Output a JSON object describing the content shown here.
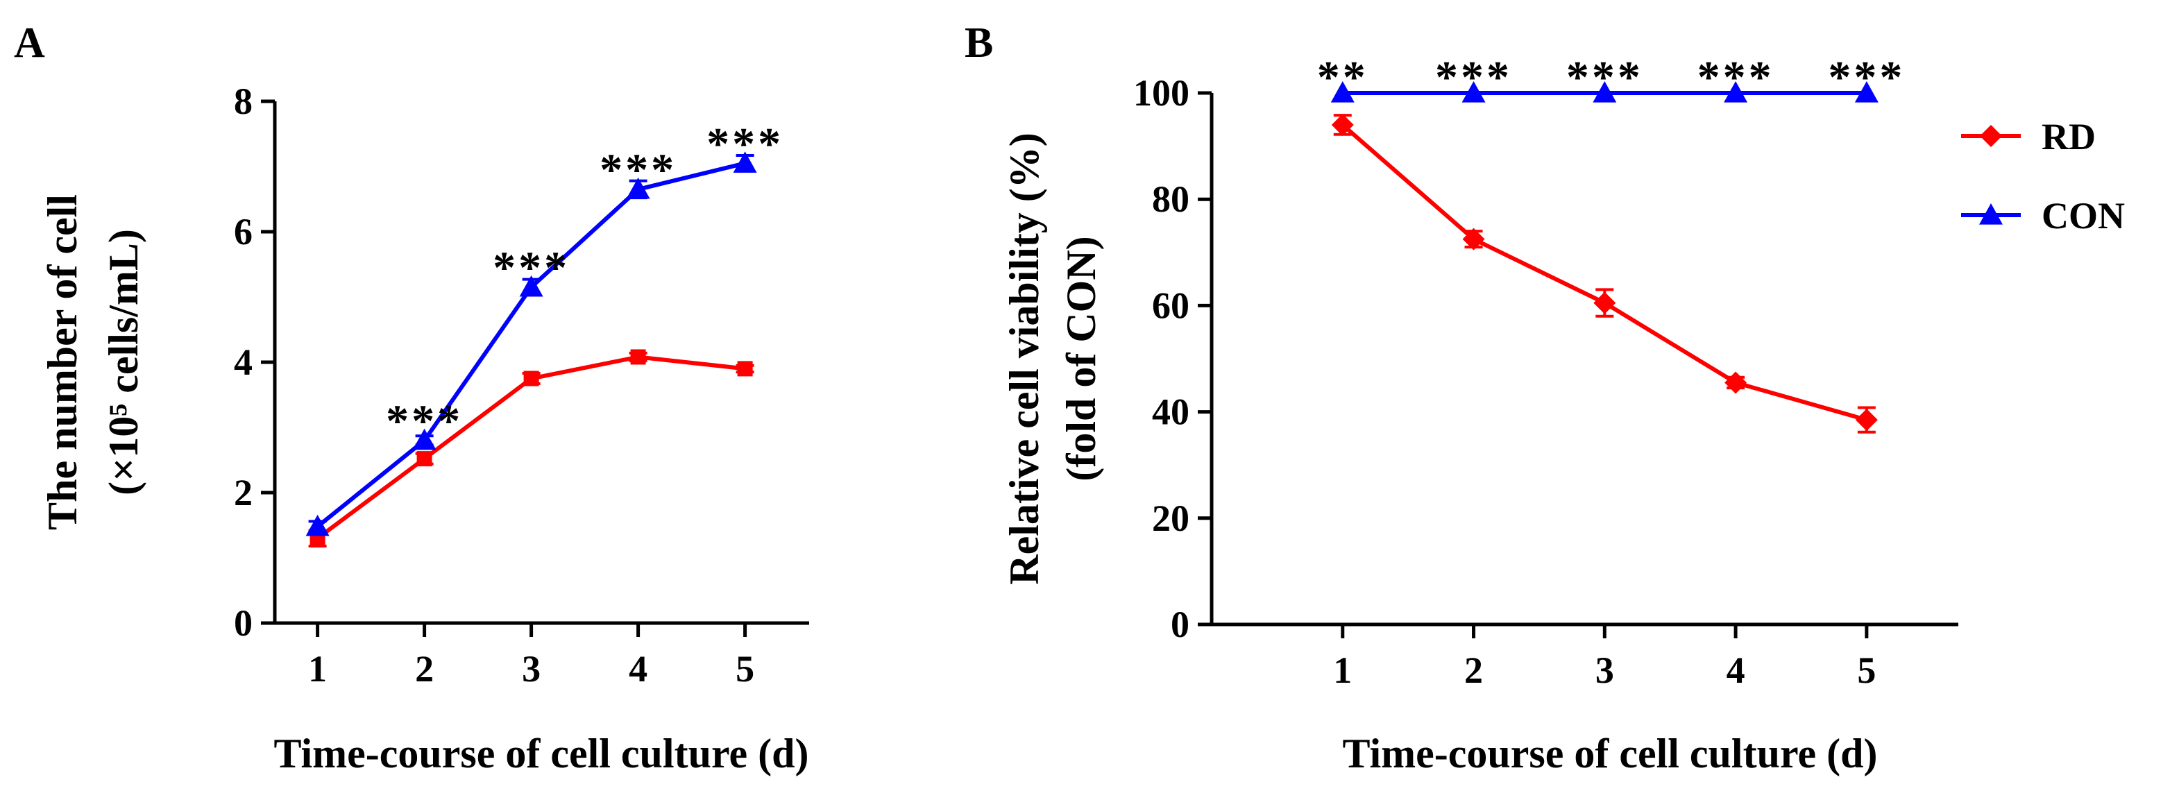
{
  "chart_data": [
    {
      "panel": "A",
      "type": "line",
      "title": "",
      "x": [
        1,
        2,
        3,
        4,
        5
      ],
      "xticks": [
        "1",
        "2",
        "3",
        "4",
        "5"
      ],
      "xlim": [
        0.6,
        5.6
      ],
      "ylim": [
        0,
        8
      ],
      "yticks": [
        "0",
        "2",
        "4",
        "6",
        "8"
      ],
      "xlabel": "Time-course of cell culture (d)",
      "ylabel_line1": "The number of cell",
      "ylabel_line2": "(×10⁵ cells/mL)",
      "series": [
        {
          "name": "RD",
          "color": "#ff0000",
          "marker": "square",
          "values": [
            1.3,
            2.52,
            3.75,
            4.08,
            3.9
          ],
          "errors": [
            0.12,
            0.08,
            0.08,
            0.06,
            0.05
          ]
        },
        {
          "name": "CON",
          "color": "#0000ff",
          "marker": "triangle",
          "values": [
            1.48,
            2.8,
            5.15,
            6.65,
            7.05
          ],
          "errors": [
            0.08,
            0.07,
            0.12,
            0.13,
            0.12
          ]
        }
      ],
      "annotations": [
        {
          "x": 2,
          "y": 3.1,
          "text": "***"
        },
        {
          "x": 3,
          "y": 5.45,
          "text": "***"
        },
        {
          "x": 4,
          "y": 6.95,
          "text": "***"
        },
        {
          "x": 5,
          "y": 7.35,
          "text": "***"
        }
      ]
    },
    {
      "panel": "B",
      "type": "line",
      "title": "",
      "x": [
        1,
        2,
        3,
        4,
        5
      ],
      "xticks": [
        "1",
        "2",
        "3",
        "4",
        "5"
      ],
      "xlim": [
        0.0,
        5.7
      ],
      "ylim": [
        0,
        100
      ],
      "yticks": [
        "0",
        "20",
        "40",
        "60",
        "80",
        "100"
      ],
      "xlabel": "Time-course of cell culture (d)",
      "ylabel_line1": "Relative cell viability (%)",
      "ylabel_line2": "(fold of CON)",
      "legend_position": "top-right",
      "series": [
        {
          "name": "RD",
          "color": "#ff0000",
          "marker": "diamond",
          "values": [
            94,
            72.5,
            60.5,
            45.5,
            38.5
          ],
          "errors": [
            1.8,
            1.5,
            2.5,
            1.0,
            2.3
          ]
        },
        {
          "name": "CON",
          "color": "#0000ff",
          "marker": "triangle",
          "values": [
            100,
            100,
            100,
            100,
            100
          ],
          "errors": [
            0,
            0,
            0,
            0,
            0
          ]
        }
      ],
      "annotations": [
        {
          "x": 1,
          "y": 103,
          "text": "**"
        },
        {
          "x": 2,
          "y": 103,
          "text": "***"
        },
        {
          "x": 3,
          "y": 103,
          "text": "***"
        },
        {
          "x": 4,
          "y": 103,
          "text": "***"
        },
        {
          "x": 5,
          "y": 103,
          "text": "***"
        }
      ]
    }
  ]
}
